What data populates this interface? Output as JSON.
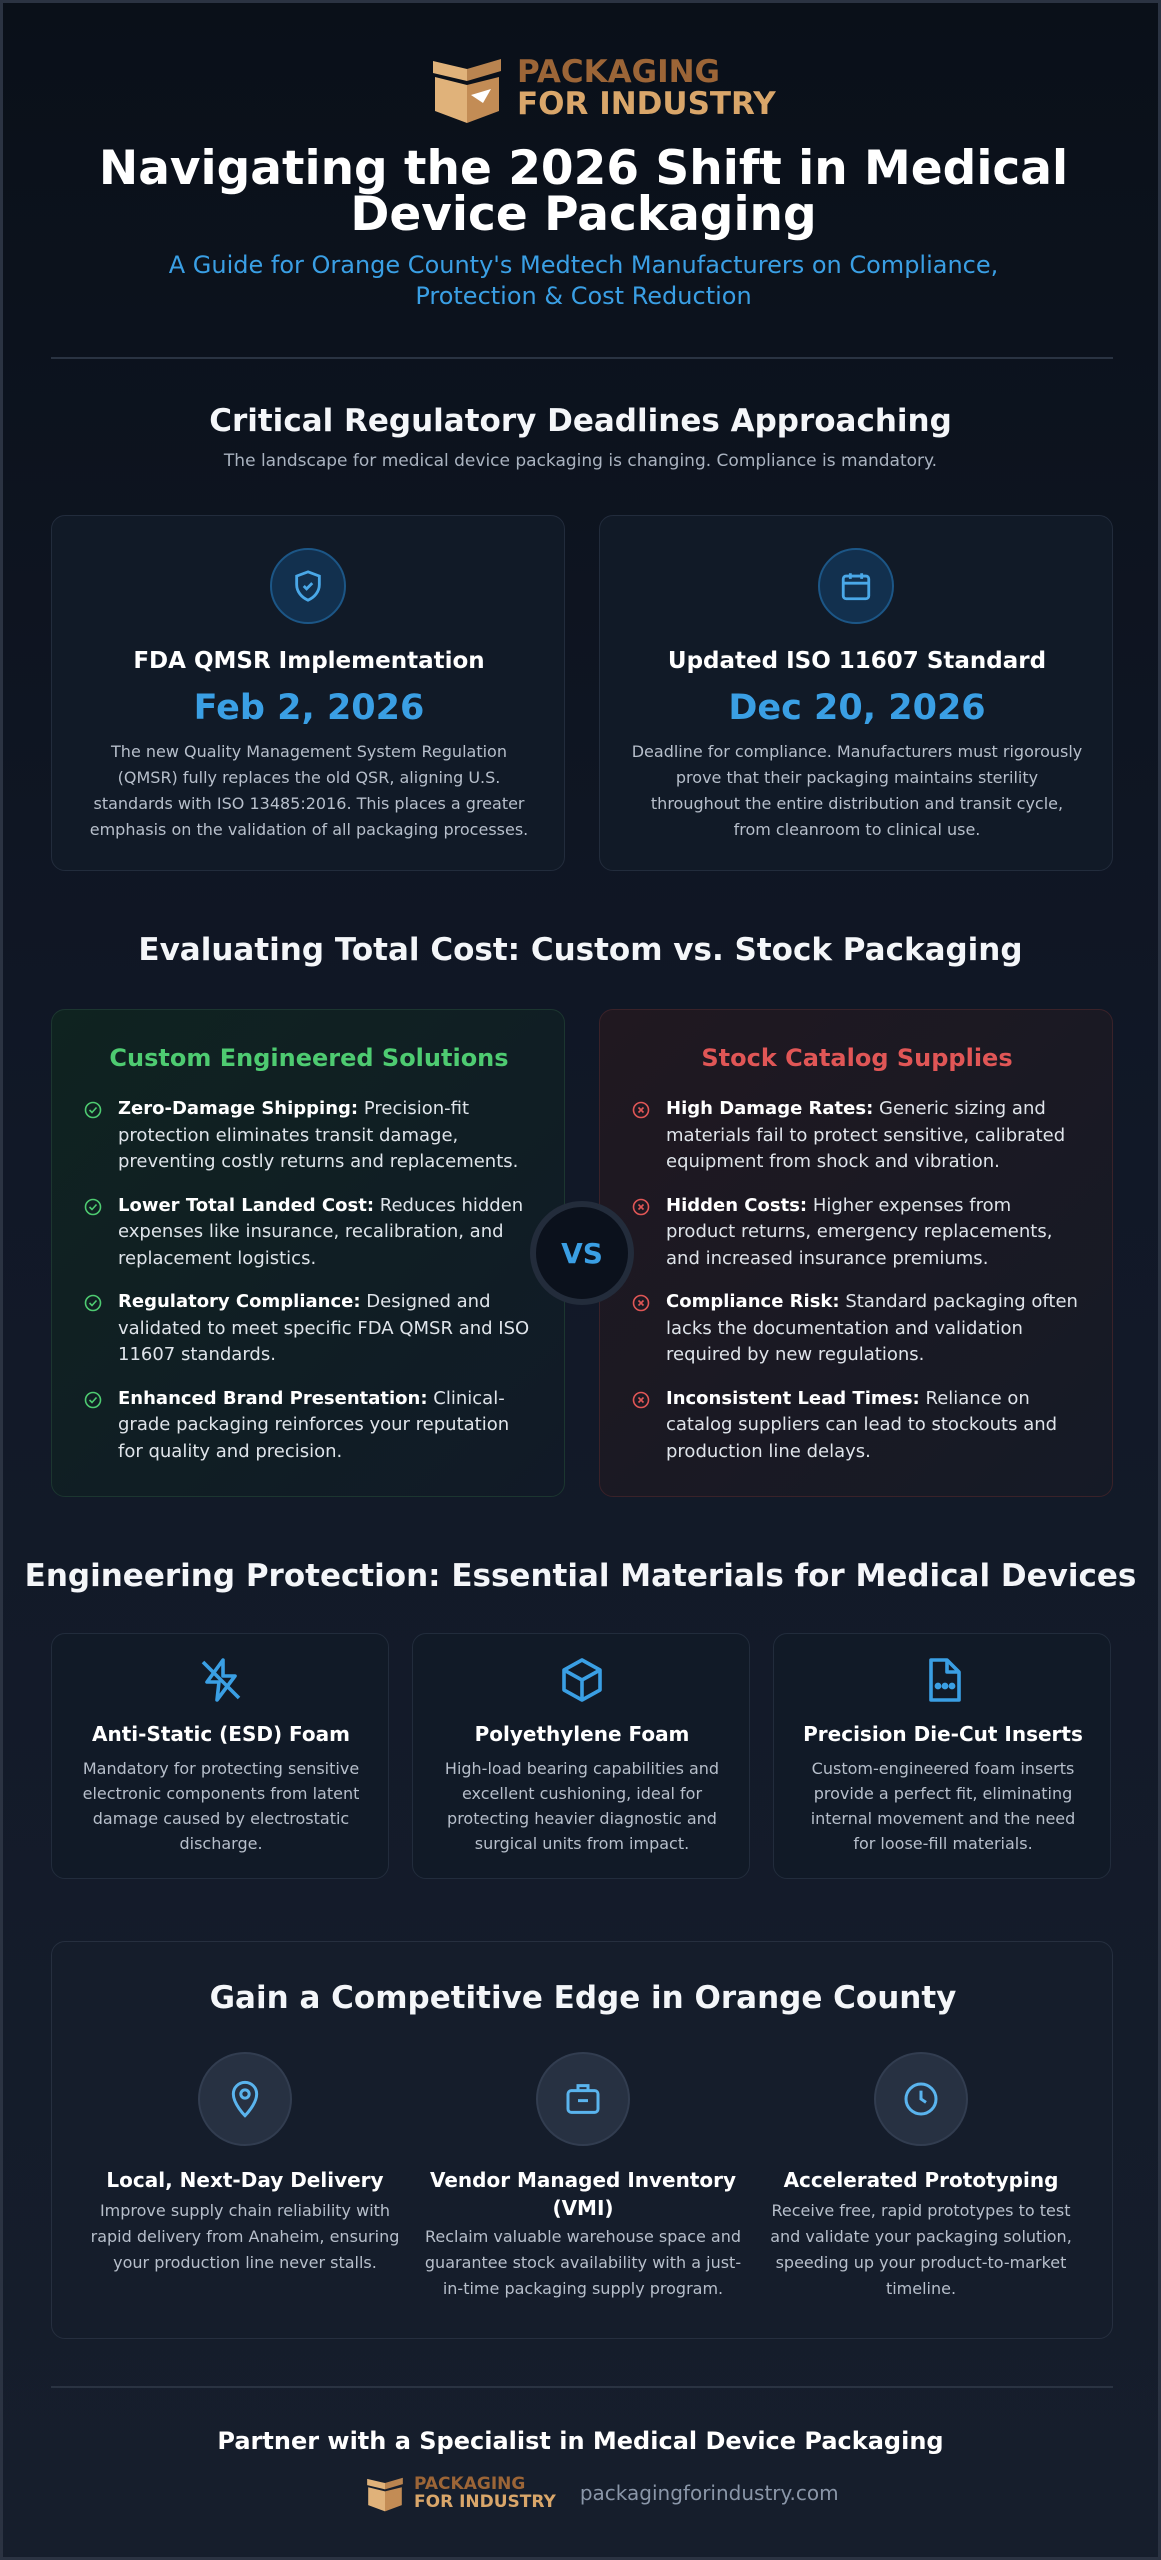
{
  "header": {
    "brand_line1": "PACKAGING",
    "brand_line2": "FOR INDUSTRY",
    "title": "Navigating the 2026 Shift in Medical Device Packaging",
    "subtitle": "A Guide for Orange County's Medtech Manufacturers on Compliance, Protection & Cost Reduction"
  },
  "deadlines": {
    "title": "Critical Regulatory Deadlines Approaching",
    "subtitle": "The landscape for medical device packaging is changing. Compliance is mandatory.",
    "cards": [
      {
        "title": "FDA QMSR Implementation",
        "date": "Feb 2, 2026",
        "description": "The new Quality Management System Regulation (QMSR) fully replaces the old QSR, aligning U.S. standards with ISO 13485:2016. This places a greater emphasis on the validation of all packaging processes."
      },
      {
        "title": "Updated ISO 11607 Standard",
        "date": "Dec 20, 2026",
        "description": "Deadline for compliance. Manufacturers must rigorously prove that their packaging maintains sterility throughout the entire distribution and transit cycle, from cleanroom to clinical use."
      }
    ]
  },
  "comparison": {
    "title": "Evaluating Total Cost: Custom vs. Stock Packaging",
    "vs": "VS",
    "custom": {
      "title": "Custom Engineered Solutions",
      "items": [
        {
          "label": "Zero-Damage Shipping:",
          "text": "Precision-fit protection eliminates transit damage, preventing costly returns and replacements."
        },
        {
          "label": "Lower Total Landed Cost:",
          "text": "Reduces hidden expenses like insurance, recalibration, and replacement logistics."
        },
        {
          "label": "Regulatory Compliance:",
          "text": "Designed and validated to meet specific FDA QMSR and ISO 11607 standards."
        },
        {
          "label": "Enhanced Brand Presentation:",
          "text": "Clinical-grade packaging reinforces your reputation for quality and precision."
        }
      ]
    },
    "stock": {
      "title": "Stock Catalog Supplies",
      "items": [
        {
          "label": "High Damage Rates:",
          "text": "Generic sizing and materials fail to protect sensitive, calibrated equipment from shock and vibration."
        },
        {
          "label": "Hidden Costs:",
          "text": "Higher expenses from product returns, emergency replacements, and increased insurance premiums."
        },
        {
          "label": "Compliance Risk:",
          "text": "Standard packaging often lacks the documentation and validation required by new regulations."
        },
        {
          "label": "Inconsistent Lead Times:",
          "text": "Reliance on catalog suppliers can lead to stockouts and production line delays."
        }
      ]
    }
  },
  "materials": {
    "title": "Engineering Protection: Essential Materials for Medical Devices",
    "items": [
      {
        "title": "Anti-Static (ESD) Foam",
        "description": "Mandatory for protecting sensitive electronic components from latent damage caused by electrostatic discharge."
      },
      {
        "title": "Polyethylene Foam",
        "description": "High-load bearing capabilities and excellent cushioning, ideal for protecting heavier diagnostic and surgical units from impact."
      },
      {
        "title": "Precision Die-Cut Inserts",
        "description": "Custom-engineered foam inserts provide a perfect fit, eliminating internal movement and the need for loose-fill materials."
      }
    ]
  },
  "advantages": {
    "title": "Gain a Competitive Edge in Orange County",
    "items": [
      {
        "title": "Local, Next-Day Delivery",
        "description": "Improve supply chain reliability with rapid delivery from Anaheim, ensuring your production line never stalls."
      },
      {
        "title": "Vendor Managed Inventory (VMI)",
        "description": "Reclaim valuable warehouse space and guarantee stock availability with a just-in-time packaging supply program."
      },
      {
        "title": "Accelerated Prototyping",
        "description": "Receive free, rapid prototypes to test and validate your packaging solution, speeding up your product-to-market timeline."
      }
    ]
  },
  "footer": {
    "title": "Partner with a Specialist in Medical Device Packaging",
    "url": "packagingforindustry.com"
  }
}
